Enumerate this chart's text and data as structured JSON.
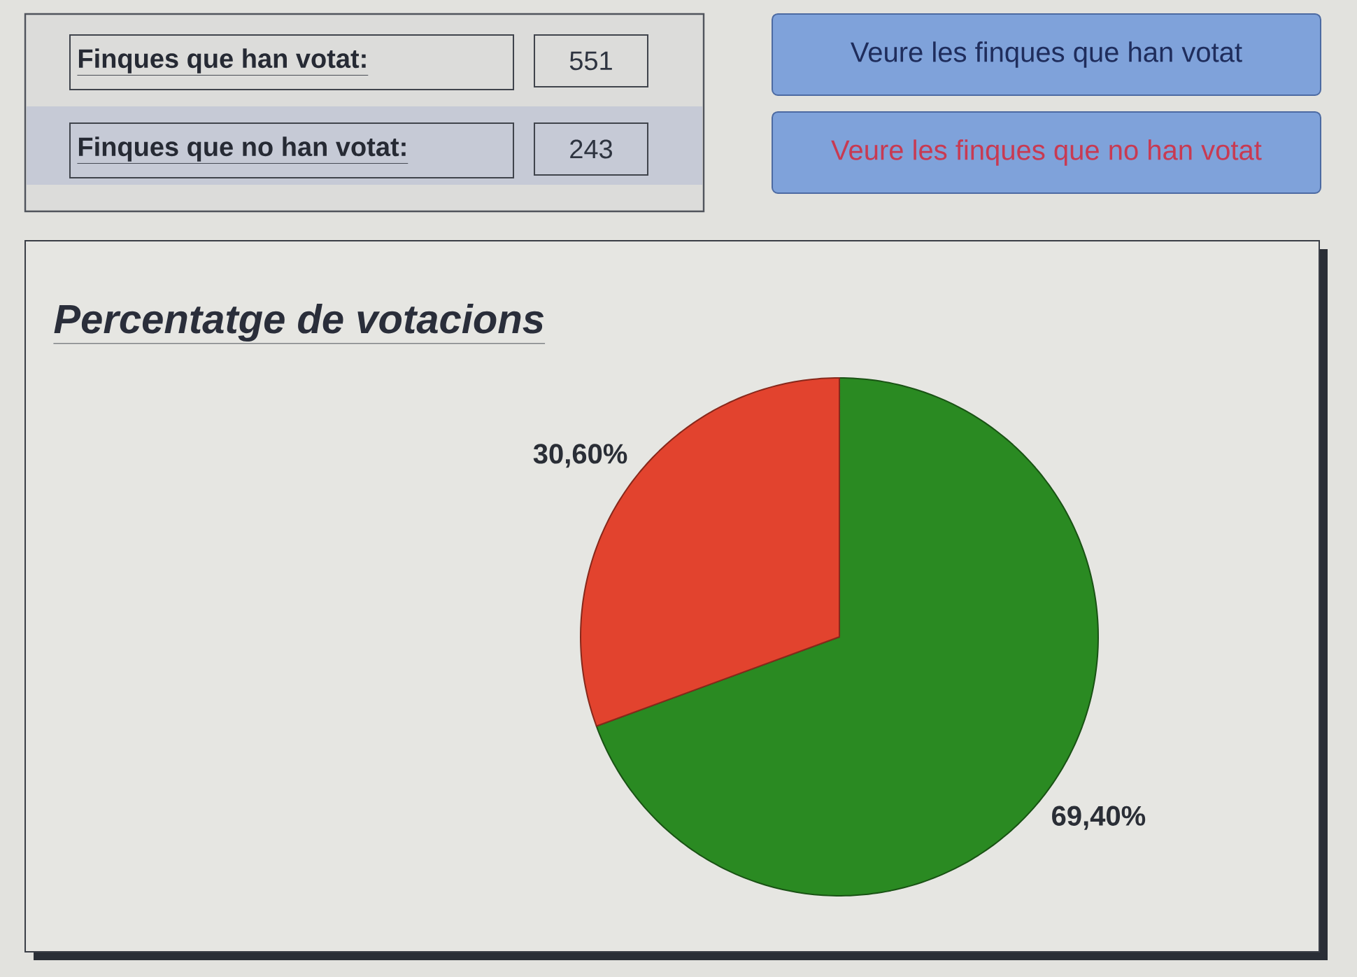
{
  "chart_data": [
    {
      "type": "other",
      "annotations": [
        "Finques que han votat:",
        "551",
        "Finques que no han votat:",
        "243",
        "Veure les finques que han votat",
        "Veure les finques que no han votat"
      ]
    },
    {
      "type": "pie",
      "title": "Percentatge de votacions",
      "categories": [
        null,
        null
      ],
      "values": [
        69.4,
        30.6
      ],
      "colors": [
        "#2a8a22",
        "#e2432e"
      ],
      "value_labels": [
        "69,40%",
        "30,60%"
      ]
    }
  ]
}
